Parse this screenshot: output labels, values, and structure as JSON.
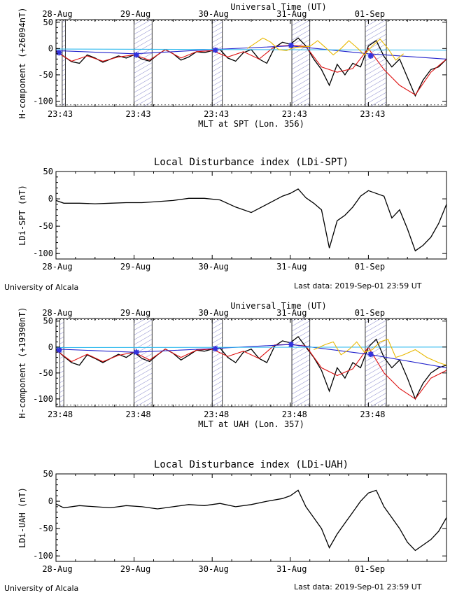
{
  "footer_left": "University of Alcala",
  "footer_right": "Last data: 2019-Sep-01  23:59 UT",
  "colors": {
    "measured": "#000000",
    "baseline_red": "#dd1111",
    "baseline_blue": "#2222cc",
    "quiet_cyan": "#33bbee",
    "tide_yellow": "#e8b800",
    "marker": "#3333dd",
    "hatch": "#8888cc"
  },
  "chart_data": [
    {
      "type": "line",
      "station": "SPT",
      "top_title": "Universal Time (UT)",
      "top_tick_labels": [
        "28-Aug",
        "29-Aug",
        "30-Aug",
        "31-Aug",
        "01-Sep"
      ],
      "bottom_tick_labels": [
        "23:43",
        "23:43",
        "23:43",
        "23:43",
        "23:43"
      ],
      "xlabel": "MLT at SPT (Lon. 356)",
      "ylabel": "H-component (+26094nT)",
      "ylim": [
        -110,
        55
      ],
      "yticks": [
        50,
        0,
        -50,
        -100
      ],
      "xlim": [
        0,
        5
      ],
      "bands": [
        [
          0.08,
          0.12
        ],
        [
          1.0,
          1.23
        ],
        [
          2.0,
          2.13
        ],
        [
          3.02,
          3.25
        ],
        [
          3.96,
          4.23
        ]
      ],
      "markers": [
        [
          0.04,
          -8
        ],
        [
          1.03,
          -12
        ],
        [
          2.04,
          -3
        ],
        [
          3.01,
          6
        ],
        [
          4.03,
          -14
        ]
      ],
      "series": [
        {
          "role": "measured",
          "x": [
            0,
            0.1,
            0.2,
            0.3,
            0.4,
            0.5,
            0.6,
            0.7,
            0.8,
            0.9,
            1.0,
            1.1,
            1.2,
            1.3,
            1.4,
            1.5,
            1.6,
            1.7,
            1.8,
            1.9,
            2.0,
            2.1,
            2.2,
            2.3,
            2.4,
            2.5,
            2.6,
            2.7,
            2.8,
            2.9,
            3.0,
            3.1,
            3.2,
            3.3,
            3.4,
            3.5,
            3.6,
            3.7,
            3.8,
            3.9,
            4.0,
            4.1,
            4.2,
            4.3,
            4.4,
            4.5,
            4.6,
            4.7,
            4.8,
            4.9,
            5.0
          ],
          "y": [
            -5,
            -15,
            -25,
            -28,
            -12,
            -18,
            -26,
            -20,
            -14,
            -18,
            -12,
            -20,
            -24,
            -12,
            -2,
            -10,
            -22,
            -16,
            -6,
            -8,
            -4,
            -2,
            -18,
            -24,
            -8,
            -2,
            -20,
            -28,
            2,
            12,
            8,
            20,
            5,
            -20,
            -40,
            -70,
            -30,
            -50,
            -28,
            -35,
            5,
            15,
            -15,
            -35,
            -20,
            -55,
            -90,
            -60,
            -40,
            -35,
            -20
          ]
        },
        {
          "role": "baseline_red",
          "x": [
            0,
            0.2,
            0.4,
            0.6,
            0.8,
            1.0,
            1.2,
            1.4,
            1.6,
            1.8,
            2.0,
            2.2,
            2.4,
            2.6,
            2.8,
            3.0,
            3.2,
            3.4,
            3.6,
            3.8,
            4.0,
            4.2,
            4.4,
            4.6,
            4.8,
            5.0
          ],
          "y": [
            -6,
            -24,
            -14,
            -24,
            -16,
            -12,
            -22,
            -2,
            -18,
            -6,
            -4,
            -16,
            -6,
            -20,
            4,
            6,
            4,
            -35,
            -45,
            -38,
            0,
            -40,
            -70,
            -88,
            -45,
            -20
          ]
        },
        {
          "role": "baseline_blue",
          "x": [
            0,
            1,
            2,
            3,
            4,
            5
          ],
          "y": [
            -4,
            -10,
            -2,
            5,
            -10,
            -20
          ]
        },
        {
          "role": "quiet_cyan",
          "x": [
            0,
            5
          ],
          "y": [
            -1,
            -3
          ]
        },
        {
          "role": "tide_yellow",
          "x": [
            2.45,
            2.55,
            2.65,
            2.75,
            2.85,
            2.95,
            3.05,
            3.25,
            3.35,
            3.45,
            3.55,
            3.65,
            3.75,
            3.85,
            3.95,
            4.05,
            4.15,
            4.25,
            4.35,
            4.45
          ],
          "y": [
            0,
            10,
            20,
            12,
            -2,
            -4,
            2,
            4,
            15,
            2,
            -12,
            0,
            15,
            2,
            -12,
            5,
            18,
            0,
            -22,
            -10
          ]
        }
      ]
    },
    {
      "type": "line",
      "station": "SPT",
      "title": "Local Disturbance index (LDi-SPT)",
      "ylabel": "LDi-SPT (nT)",
      "tick_labels": [
        "28-Aug",
        "29-Aug",
        "30-Aug",
        "31-Aug",
        "01-Sep"
      ],
      "ylim": [
        -110,
        50
      ],
      "yticks": [
        50,
        0,
        -50,
        -100
      ],
      "xlim": [
        0,
        5
      ],
      "series": [
        {
          "role": "ldi",
          "x": [
            0,
            0.1,
            0.3,
            0.5,
            0.7,
            0.9,
            1.1,
            1.3,
            1.5,
            1.7,
            1.9,
            2.1,
            2.3,
            2.5,
            2.7,
            2.9,
            3.0,
            3.1,
            3.2,
            3.3,
            3.4,
            3.5,
            3.6,
            3.7,
            3.8,
            3.9,
            4.0,
            4.1,
            4.2,
            4.3,
            4.4,
            4.5,
            4.6,
            4.7,
            4.8,
            4.9,
            5.0
          ],
          "y": [
            -3,
            -8,
            -8,
            -9,
            -8,
            -7,
            -7,
            -5,
            -3,
            1,
            1,
            -2,
            -15,
            -25,
            -10,
            5,
            10,
            18,
            2,
            -8,
            -20,
            -90,
            -40,
            -30,
            -15,
            5,
            15,
            10,
            5,
            -35,
            -20,
            -55,
            -95,
            -85,
            -70,
            -45,
            -10
          ]
        }
      ]
    },
    {
      "type": "line",
      "station": "UAH",
      "top_title": "Universal Time (UT)",
      "top_tick_labels": [
        "28-Aug",
        "29-Aug",
        "30-Aug",
        "31-Aug",
        "01-Sep"
      ],
      "bottom_tick_labels": [
        "23:48",
        "23:48",
        "23:48",
        "23:48",
        "23:48"
      ],
      "xlabel": "MLT at UAH (Lon. 357)",
      "ylabel": "H-component (+19390nT)",
      "ylim": [
        -115,
        55
      ],
      "yticks": [
        50,
        0,
        -50,
        -100
      ],
      "xlim": [
        0,
        5
      ],
      "bands": [
        [
          0.05,
          0.1
        ],
        [
          1.0,
          1.23
        ],
        [
          2.0,
          2.13
        ],
        [
          3.02,
          3.25
        ],
        [
          3.96,
          4.23
        ]
      ],
      "markers": [
        [
          0.04,
          -6
        ],
        [
          1.03,
          -10
        ],
        [
          2.04,
          -3
        ],
        [
          3.01,
          5
        ],
        [
          4.03,
          -14
        ]
      ],
      "series": [
        {
          "role": "measured",
          "x": [
            0,
            0.1,
            0.2,
            0.3,
            0.4,
            0.5,
            0.6,
            0.7,
            0.8,
            0.9,
            1.0,
            1.1,
            1.2,
            1.3,
            1.4,
            1.5,
            1.6,
            1.7,
            1.8,
            1.9,
            2.0,
            2.1,
            2.2,
            2.3,
            2.4,
            2.5,
            2.6,
            2.7,
            2.8,
            2.9,
            3.0,
            3.1,
            3.2,
            3.3,
            3.4,
            3.5,
            3.6,
            3.7,
            3.8,
            3.9,
            4.0,
            4.1,
            4.2,
            4.3,
            4.4,
            4.5,
            4.6,
            4.7,
            4.8,
            4.9,
            5.0
          ],
          "y": [
            -5,
            -18,
            -30,
            -35,
            -15,
            -22,
            -30,
            -22,
            -14,
            -20,
            -10,
            -22,
            -28,
            -15,
            -4,
            -12,
            -25,
            -16,
            -6,
            -8,
            -4,
            -2,
            -20,
            -30,
            -10,
            -4,
            -22,
            -30,
            2,
            12,
            8,
            20,
            0,
            -20,
            -45,
            -85,
            -40,
            -60,
            -30,
            -40,
            0,
            15,
            -20,
            -40,
            -25,
            -60,
            -100,
            -70,
            -50,
            -40,
            -35
          ]
        },
        {
          "role": "baseline_red",
          "x": [
            0,
            0.2,
            0.4,
            0.6,
            0.8,
            1.0,
            1.2,
            1.4,
            1.6,
            1.8,
            2.0,
            2.2,
            2.4,
            2.6,
            2.8,
            3.0,
            3.2,
            3.4,
            3.6,
            3.8,
            4.0,
            4.2,
            4.4,
            4.6,
            4.8,
            5.0
          ],
          "y": [
            -6,
            -28,
            -14,
            -28,
            -16,
            -10,
            -25,
            -4,
            -20,
            -6,
            -4,
            -18,
            -8,
            -22,
            4,
            5,
            2,
            -40,
            -55,
            -42,
            0,
            -50,
            -80,
            -100,
            -60,
            -45
          ]
        },
        {
          "role": "baseline_blue",
          "x": [
            0,
            1,
            2,
            3,
            4,
            5
          ],
          "y": [
            -4,
            -10,
            -3,
            5,
            -14,
            -40
          ]
        },
        {
          "role": "quiet_cyan",
          "x": [
            0,
            5
          ],
          "y": [
            -1,
            0
          ]
        },
        {
          "role": "tide_yellow",
          "x": [
            3.3,
            3.45,
            3.55,
            3.65,
            3.75,
            3.85,
            3.95,
            4.05,
            4.15,
            4.25,
            4.35,
            4.45,
            4.6,
            4.75,
            4.9,
            5.0
          ],
          "y": [
            -5,
            5,
            10,
            -15,
            -5,
            10,
            -10,
            -5,
            10,
            15,
            -20,
            -15,
            -5,
            -20,
            -30,
            -35
          ]
        }
      ]
    },
    {
      "type": "line",
      "station": "UAH",
      "title": "Local Disturbance index (LDi-UAH)",
      "ylabel": "LDi-UAH (nT)",
      "tick_labels": [
        "28-Aug",
        "29-Aug",
        "30-Aug",
        "31-Aug",
        "01-Sep"
      ],
      "ylim": [
        -110,
        50
      ],
      "yticks": [
        50,
        0,
        -50,
        -100
      ],
      "xlim": [
        0,
        5
      ],
      "series": [
        {
          "role": "ldi",
          "x": [
            0,
            0.1,
            0.3,
            0.5,
            0.7,
            0.9,
            1.1,
            1.3,
            1.5,
            1.7,
            1.9,
            2.1,
            2.3,
            2.5,
            2.7,
            2.9,
            3.0,
            3.1,
            3.2,
            3.3,
            3.4,
            3.5,
            3.6,
            3.7,
            3.8,
            3.9,
            4.0,
            4.1,
            4.2,
            4.3,
            4.4,
            4.5,
            4.6,
            4.7,
            4.8,
            4.9,
            5.0
          ],
          "y": [
            -5,
            -12,
            -8,
            -10,
            -12,
            -8,
            -10,
            -14,
            -10,
            -6,
            -8,
            -4,
            -10,
            -6,
            0,
            5,
            10,
            20,
            -10,
            -30,
            -50,
            -85,
            -60,
            -40,
            -20,
            0,
            15,
            20,
            -10,
            -30,
            -50,
            -75,
            -90,
            -80,
            -70,
            -55,
            -30
          ]
        }
      ]
    }
  ]
}
